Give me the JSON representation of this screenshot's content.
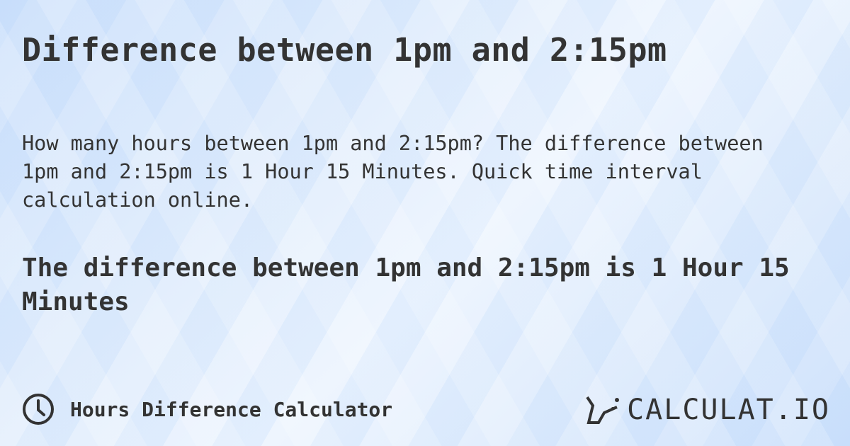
{
  "title": "Difference between 1pm and 2:15pm",
  "description": "How many hours between 1pm and 2:15pm? The difference between 1pm and 2:15pm is 1 Hour 15 Minutes. Quick time interval calculation online.",
  "answer": "The difference between 1pm and 2:15pm is 1 Hour 15 Minutes",
  "footer": {
    "icon": "clock-icon",
    "label": "Hours Difference Calculator"
  },
  "logo": {
    "text": "CALCULAT.IO",
    "icon": "magic-wand-hand-icon"
  }
}
